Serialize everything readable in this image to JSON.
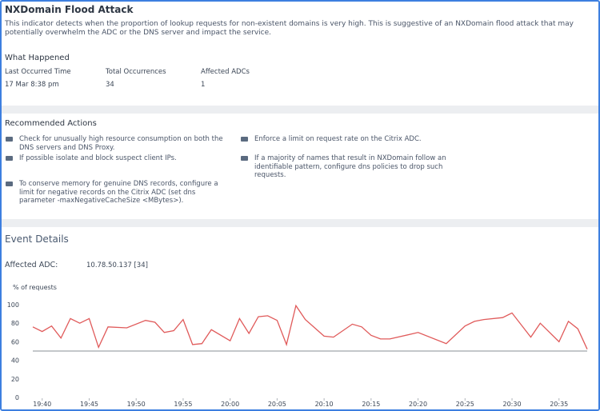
{
  "header": {
    "title": "NXDomain Flood Attack",
    "description": "This indicator detects when the proportion of lookup requests for non-existent domains is very high. This is suggestive of an NXDomain flood attack that may potentially overwhelm the ADC or the DNS server and impact the service."
  },
  "what_happened": {
    "heading": "What Happened",
    "fields": [
      {
        "label": "Last Occurred Time",
        "value": "17 Mar 8:38 pm"
      },
      {
        "label": "Total Occurrences",
        "value": 34
      },
      {
        "label": "Affected ADCs",
        "value": 1
      }
    ]
  },
  "recommended_actions": {
    "heading": "Recommended Actions",
    "items": [
      "Check for unusually high resource consumption on both the DNS servers and DNS Proxy.",
      "If possible isolate and block suspect client IPs.",
      "To conserve memory for genuine DNS records, configure a limit for negative records on the Citrix ADC (set dns parameter -maxNegativeCacheSize <MBytes>).",
      "Enforce a limit on request rate on the Citrix ADC.",
      "If a majority of names that result in NXDomain follow an identifiable pattern, configure dns policies to drop such requests."
    ]
  },
  "event_details": {
    "heading": "Event Details",
    "affected_label": "Affected ADC:",
    "affected_value": "10.78.50.137 [34]"
  },
  "chart_data": {
    "type": "line",
    "y_label": "% of requests",
    "color": "#e05a5a",
    "x": [
      "19:39",
      "19:40",
      "19:41",
      "19:42",
      "19:43",
      "19:44",
      "19:45",
      "19:46",
      "19:47",
      "19:49",
      "19:51",
      "19:52",
      "19:53",
      "19:54",
      "19:55",
      "19:56",
      "19:57",
      "19:58",
      "20:00",
      "20:01",
      "20:02",
      "20:03",
      "20:04",
      "20:05",
      "20:06",
      "20:07",
      "20:08",
      "20:09",
      "20:10",
      "20:11",
      "20:13",
      "20:14",
      "20:15",
      "20:16",
      "20:17",
      "20:20",
      "20:23",
      "20:25",
      "20:26",
      "20:27",
      "20:29",
      "20:30",
      "20:32",
      "20:33",
      "20:35",
      "20:36",
      "20:37",
      "20:38"
    ],
    "values": [
      76,
      71,
      77,
      64,
      85,
      80,
      85,
      54,
      76,
      75,
      83,
      81,
      70,
      72,
      84,
      57,
      58,
      73,
      61,
      85,
      69,
      87,
      88,
      83,
      57,
      99,
      84,
      75,
      66,
      65,
      79,
      76,
      67,
      63,
      63,
      70,
      58,
      77,
      82,
      84,
      86,
      91,
      65,
      80,
      60,
      82,
      74,
      52
    ],
    "reference_line": 50,
    "reference_color": "#8a8f96",
    "xlim": [
      "19:39",
      "20:38"
    ],
    "xticks": [
      "19:40",
      "19:45",
      "19:50",
      "19:55",
      "20:00",
      "20:05",
      "20:10",
      "20:15",
      "20:20",
      "20:25",
      "20:30",
      "20:35"
    ],
    "ylim": [
      0,
      100
    ],
    "yticks": [
      0,
      20,
      40,
      60,
      80,
      100
    ]
  }
}
